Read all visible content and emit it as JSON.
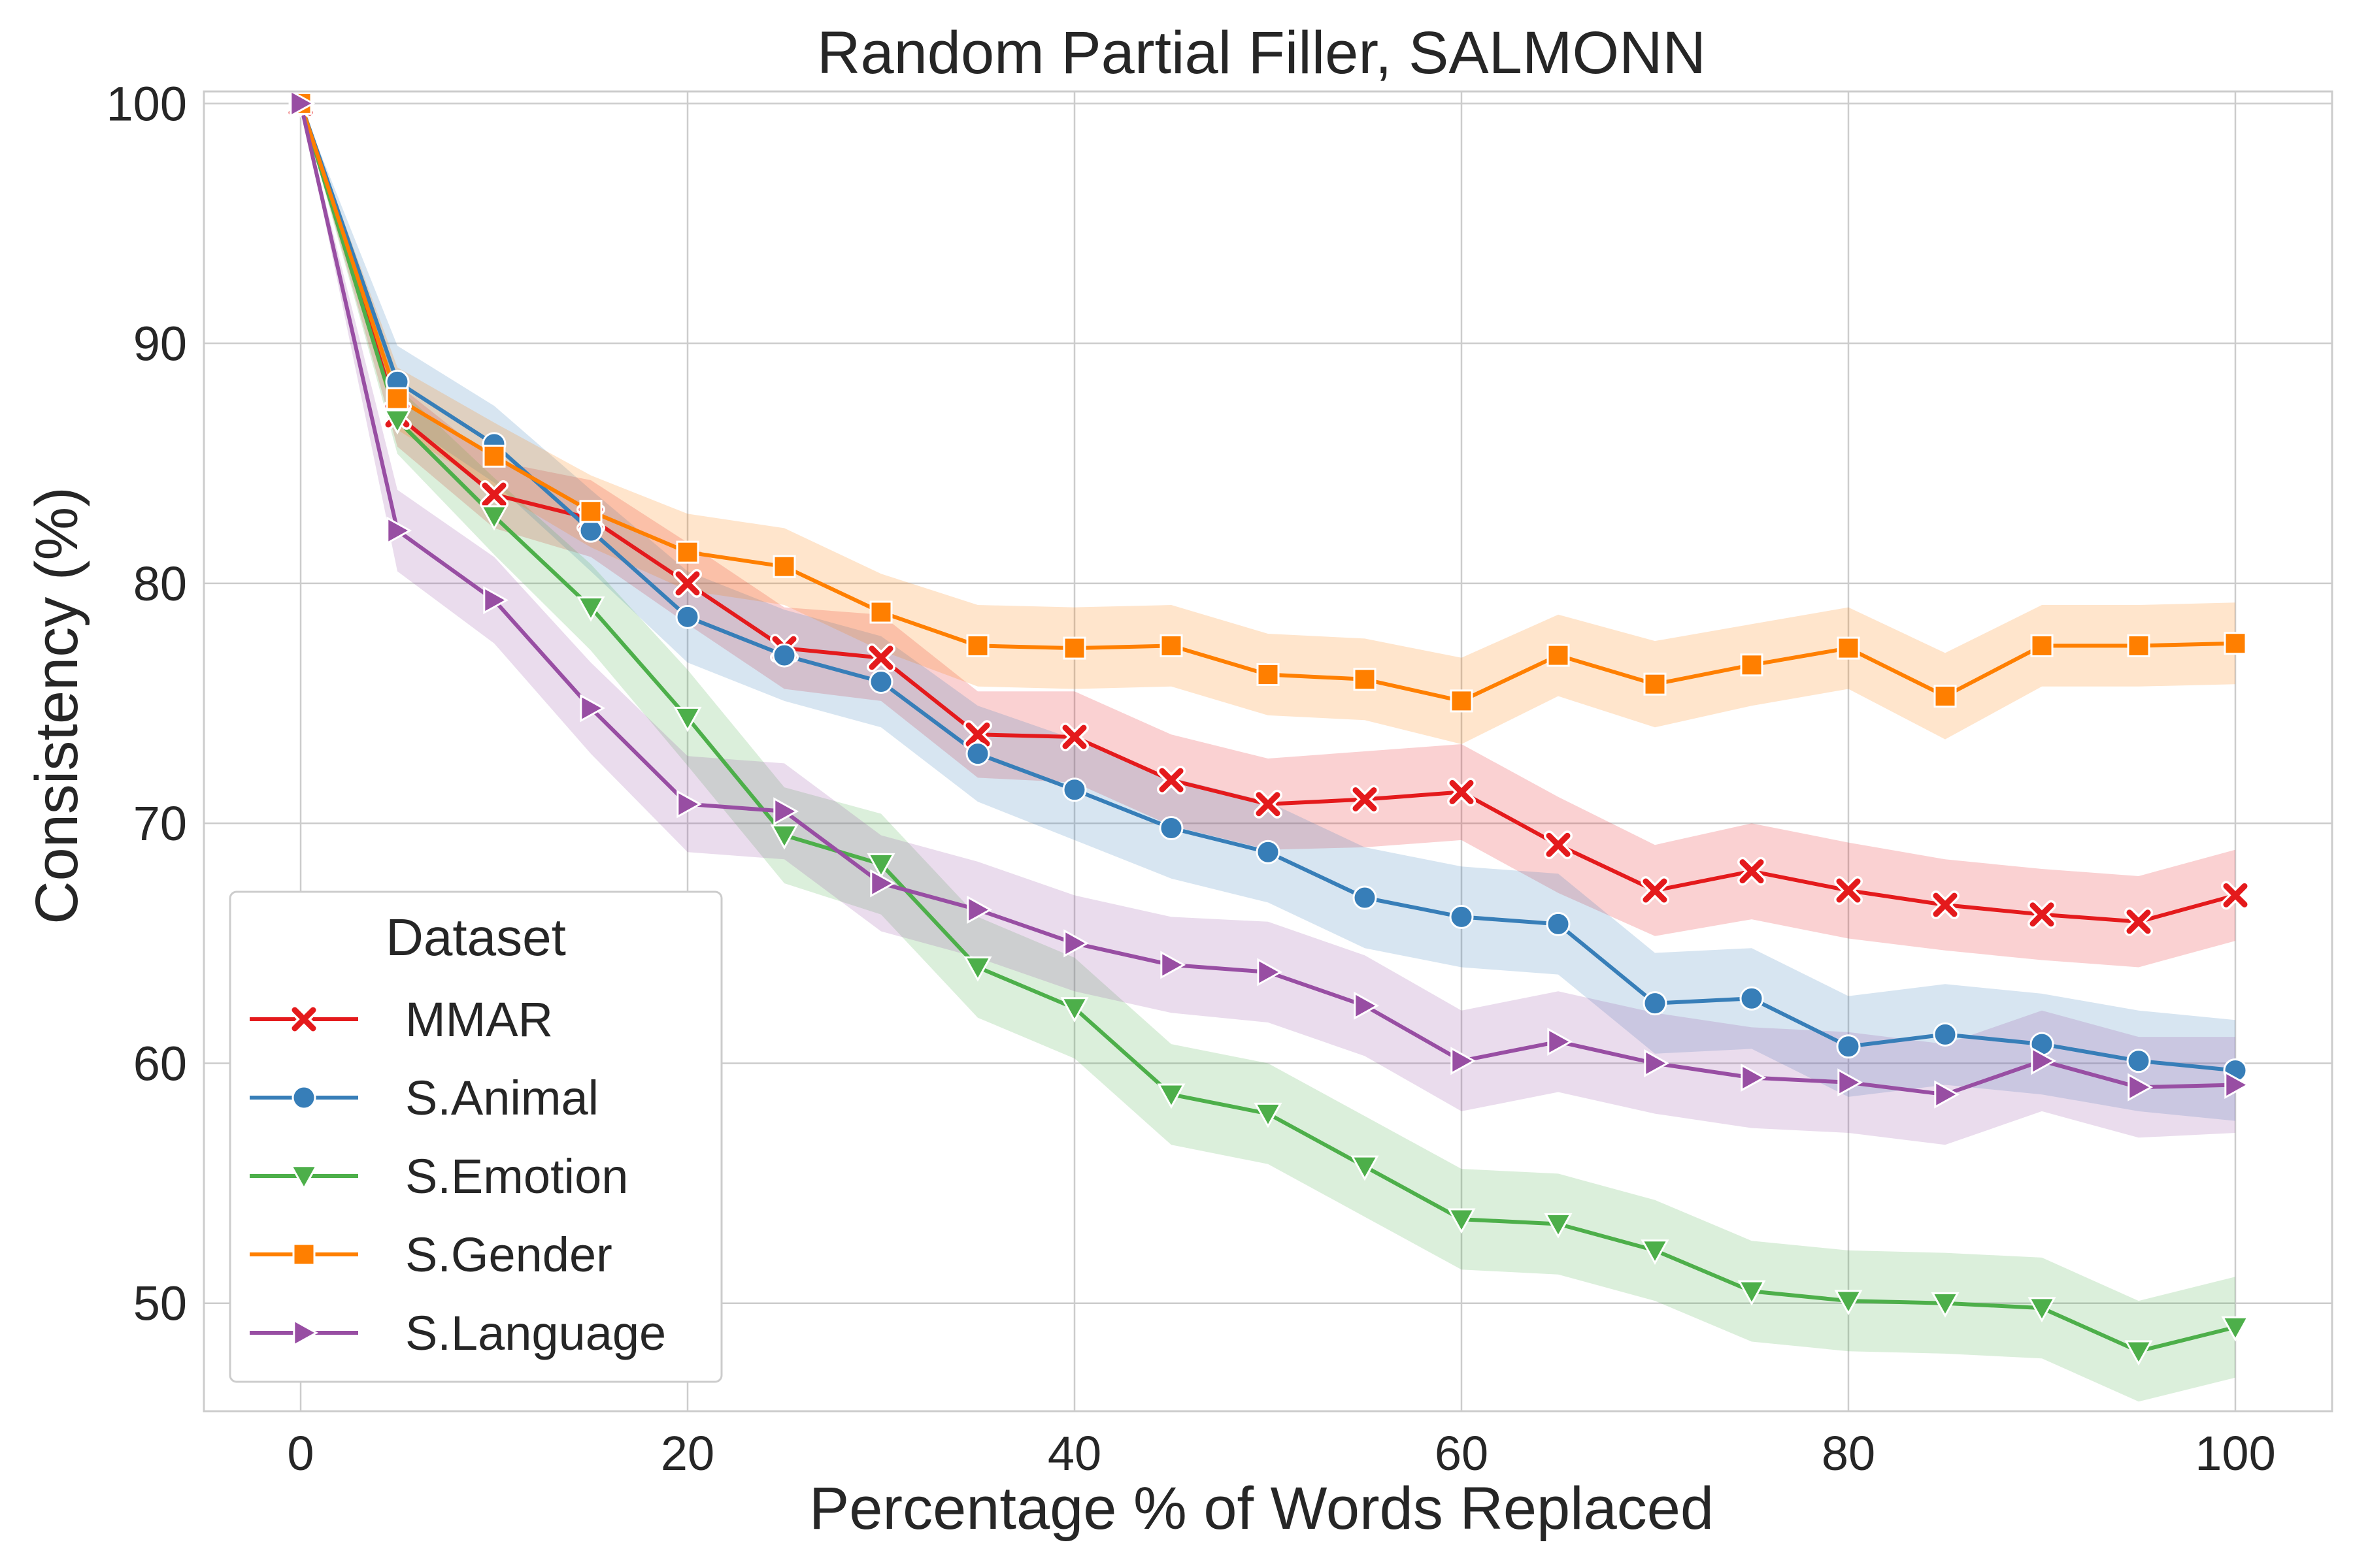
{
  "chart_data": {
    "type": "line",
    "title": "Random Partial Filler, SALMONN",
    "xlabel": "Percentage % of Words Replaced",
    "ylabel": "Consistency (%)",
    "xlim": [
      -5,
      105
    ],
    "ylim": [
      45.5,
      100.5
    ],
    "xticks": [
      0,
      20,
      40,
      60,
      80,
      100
    ],
    "yticks": [
      50,
      60,
      70,
      80,
      90,
      100
    ],
    "grid": true,
    "legend": {
      "title": "Dataset",
      "placement": "lower-left"
    },
    "x": [
      0,
      5,
      10,
      15,
      20,
      25,
      30,
      35,
      40,
      45,
      50,
      55,
      60,
      65,
      70,
      75,
      80,
      85,
      90,
      95,
      100
    ],
    "series": [
      {
        "name": "MMAR",
        "color": "#e41a1c",
        "marker": "x",
        "values": [
          100,
          87.0,
          83.7,
          82.7,
          80.0,
          77.3,
          76.9,
          73.7,
          73.6,
          71.8,
          70.8,
          71.0,
          71.3,
          69.1,
          67.2,
          68.0,
          67.2,
          66.6,
          66.2,
          65.9,
          67.0
        ],
        "band": [
          0,
          1.3,
          1.4,
          1.6,
          1.7,
          1.7,
          1.8,
          1.8,
          1.9,
          1.9,
          1.9,
          2.0,
          2.0,
          2.0,
          1.9,
          2.0,
          2.0,
          1.9,
          1.9,
          1.9,
          1.9
        ]
      },
      {
        "name": "S.Animal",
        "color": "#377eb8",
        "marker": "circle",
        "values": [
          100,
          88.4,
          85.8,
          82.2,
          78.6,
          77.0,
          75.9,
          72.9,
          71.4,
          69.8,
          68.8,
          66.9,
          66.1,
          65.8,
          62.5,
          62.7,
          60.7,
          61.2,
          60.8,
          60.1,
          59.7
        ],
        "band": [
          0,
          1.5,
          1.6,
          1.7,
          1.9,
          1.9,
          1.9,
          2.0,
          2.1,
          2.1,
          2.1,
          2.1,
          2.1,
          2.1,
          2.1,
          2.1,
          2.1,
          2.1,
          2.1,
          2.1,
          2.1
        ]
      },
      {
        "name": "S.Emotion",
        "color": "#4daf4a",
        "marker": "triangle-down",
        "values": [
          100,
          86.8,
          82.8,
          79.0,
          74.4,
          69.5,
          68.3,
          64.0,
          62.3,
          58.7,
          57.9,
          55.7,
          53.5,
          53.3,
          52.2,
          50.5,
          50.1,
          50.0,
          49.8,
          48.0,
          49.0
        ],
        "band": [
          0,
          1.4,
          1.6,
          1.8,
          2.0,
          2.0,
          2.1,
          2.1,
          2.1,
          2.1,
          2.1,
          2.1,
          2.1,
          2.1,
          2.1,
          2.1,
          2.1,
          2.1,
          2.1,
          2.1,
          2.1
        ]
      },
      {
        "name": "S.Gender",
        "color": "#ff7f00",
        "marker": "square",
        "values": [
          100,
          87.7,
          85.3,
          83.0,
          81.3,
          80.7,
          78.8,
          77.4,
          77.3,
          77.4,
          76.2,
          76.0,
          75.1,
          77.0,
          75.8,
          76.6,
          77.3,
          75.3,
          77.4,
          77.4,
          77.5
        ],
        "band": [
          0,
          1.3,
          1.4,
          1.5,
          1.6,
          1.6,
          1.6,
          1.7,
          1.7,
          1.7,
          1.7,
          1.7,
          1.8,
          1.7,
          1.8,
          1.7,
          1.7,
          1.8,
          1.7,
          1.7,
          1.7
        ]
      },
      {
        "name": "S.Language",
        "color": "#984ea3",
        "marker": "triangle-right",
        "values": [
          100,
          82.2,
          79.3,
          74.8,
          70.8,
          70.5,
          67.5,
          66.4,
          65.0,
          64.1,
          63.8,
          62.4,
          60.1,
          60.9,
          60.0,
          59.4,
          59.2,
          58.7,
          60.1,
          59.0,
          59.1
        ],
        "band": [
          0,
          1.7,
          1.8,
          1.9,
          2.0,
          2.0,
          2.0,
          2.0,
          2.0,
          2.0,
          2.1,
          2.1,
          2.1,
          2.1,
          2.1,
          2.1,
          2.1,
          2.1,
          2.1,
          2.1,
          2.0
        ]
      }
    ]
  }
}
